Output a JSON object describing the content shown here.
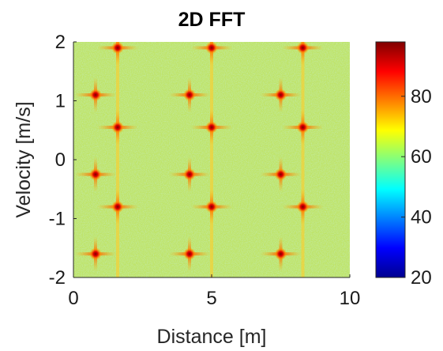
{
  "chart_data": {
    "type": "heatmap",
    "title": "2D FFT",
    "xlabel": "Distance [m]",
    "ylabel": "Velocity [m/s]",
    "xlim": [
      0,
      10
    ],
    "ylim": [
      -2,
      2
    ],
    "xticks": [
      "0",
      "5",
      "10"
    ],
    "yticks": [
      "-2",
      "-1",
      "0",
      "1",
      "2"
    ],
    "colormap": "jet",
    "colorbar": {
      "range": [
        20,
        98
      ],
      "ticks": [
        "20",
        "40",
        "60",
        "80"
      ]
    },
    "background_level": 62,
    "peak_level": 98,
    "grid": false,
    "peaks": [
      {
        "x": 1.6,
        "y": 1.9
      },
      {
        "x": 5.0,
        "y": 1.9
      },
      {
        "x": 8.3,
        "y": 1.9
      },
      {
        "x": 0.8,
        "y": 1.1
      },
      {
        "x": 4.2,
        "y": 1.1
      },
      {
        "x": 7.5,
        "y": 1.1
      },
      {
        "x": 1.6,
        "y": 0.55
      },
      {
        "x": 5.0,
        "y": 0.55
      },
      {
        "x": 8.3,
        "y": 0.55
      },
      {
        "x": 0.8,
        "y": -0.25
      },
      {
        "x": 4.2,
        "y": -0.25
      },
      {
        "x": 7.5,
        "y": -0.25
      },
      {
        "x": 1.6,
        "y": -0.8
      },
      {
        "x": 5.0,
        "y": -0.8
      },
      {
        "x": 8.3,
        "y": -0.8
      },
      {
        "x": 0.8,
        "y": -1.6
      },
      {
        "x": 4.2,
        "y": -1.6
      },
      {
        "x": 7.5,
        "y": -1.6
      }
    ],
    "vertical_ridges_x": [
      1.6,
      5.0,
      8.3
    ]
  }
}
